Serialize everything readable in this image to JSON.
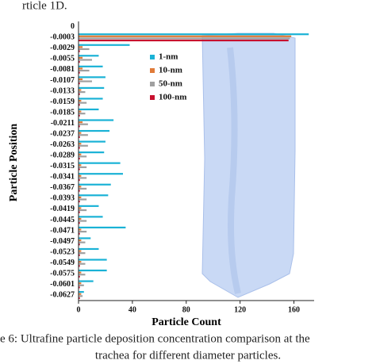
{
  "header": {
    "text": "rticle 1D."
  },
  "chart_data": {
    "type": "hbar",
    "categories": [
      "0",
      "-0.0003",
      "-0.0029",
      "-0.0055",
      "-0.0081",
      "-0.0107",
      "-0.0133",
      "-0.0159",
      "-0.0185",
      "-0.0211",
      "-0.0237",
      "-0.0263",
      "-0.0289",
      "-0.0315",
      "-0.0341",
      "-0.0367",
      "-0.0393",
      "-0.0419",
      "-0.0445",
      "-0.0471",
      "-0.0497",
      "-0.0523",
      "-0.0549",
      "-0.0575",
      "-0.0601",
      "-0.0627"
    ],
    "series": [
      {
        "name": "1-nm",
        "color": "#1ab2d6",
        "values": [
          0,
          171,
          38,
          15,
          18,
          20,
          19,
          18,
          15,
          26,
          23,
          20,
          19,
          31,
          33,
          24,
          22,
          15,
          18,
          35,
          9,
          15,
          21,
          21,
          11,
          4
        ]
      },
      {
        "name": "10-nm",
        "color": "#e07b39",
        "values": [
          0,
          158,
          3,
          3,
          3,
          3,
          2,
          2,
          2,
          3,
          2,
          2,
          2,
          2,
          2,
          2,
          2,
          2,
          2,
          2,
          2,
          2,
          2,
          2,
          2,
          2
        ]
      },
      {
        "name": "50-nm",
        "color": "#a0a0a0",
        "values": [
          0,
          157,
          8,
          10,
          8,
          10,
          5,
          6,
          5,
          7,
          7,
          7,
          6,
          6,
          6,
          6,
          6,
          6,
          6,
          6,
          5,
          5,
          5,
          5,
          4,
          3
        ]
      },
      {
        "name": "100-nm",
        "color": "#c8102e",
        "values": [
          0,
          156,
          1,
          1,
          1,
          1,
          1,
          1,
          1,
          1,
          1,
          1,
          1,
          1,
          1,
          1,
          1,
          1,
          1,
          1,
          1,
          1,
          1,
          1,
          1,
          1
        ]
      }
    ],
    "xlabel": "Particle Count",
    "ylabel": "Particle Position",
    "xlim": [
      0,
      175
    ],
    "xticks": [
      0,
      40,
      80,
      120,
      160
    ],
    "legend": "upper-center"
  },
  "caption": {
    "line1": "e 6: Ultrafine particle deposition concentration comparison at the",
    "line2": "trachea for different diameter particles."
  }
}
